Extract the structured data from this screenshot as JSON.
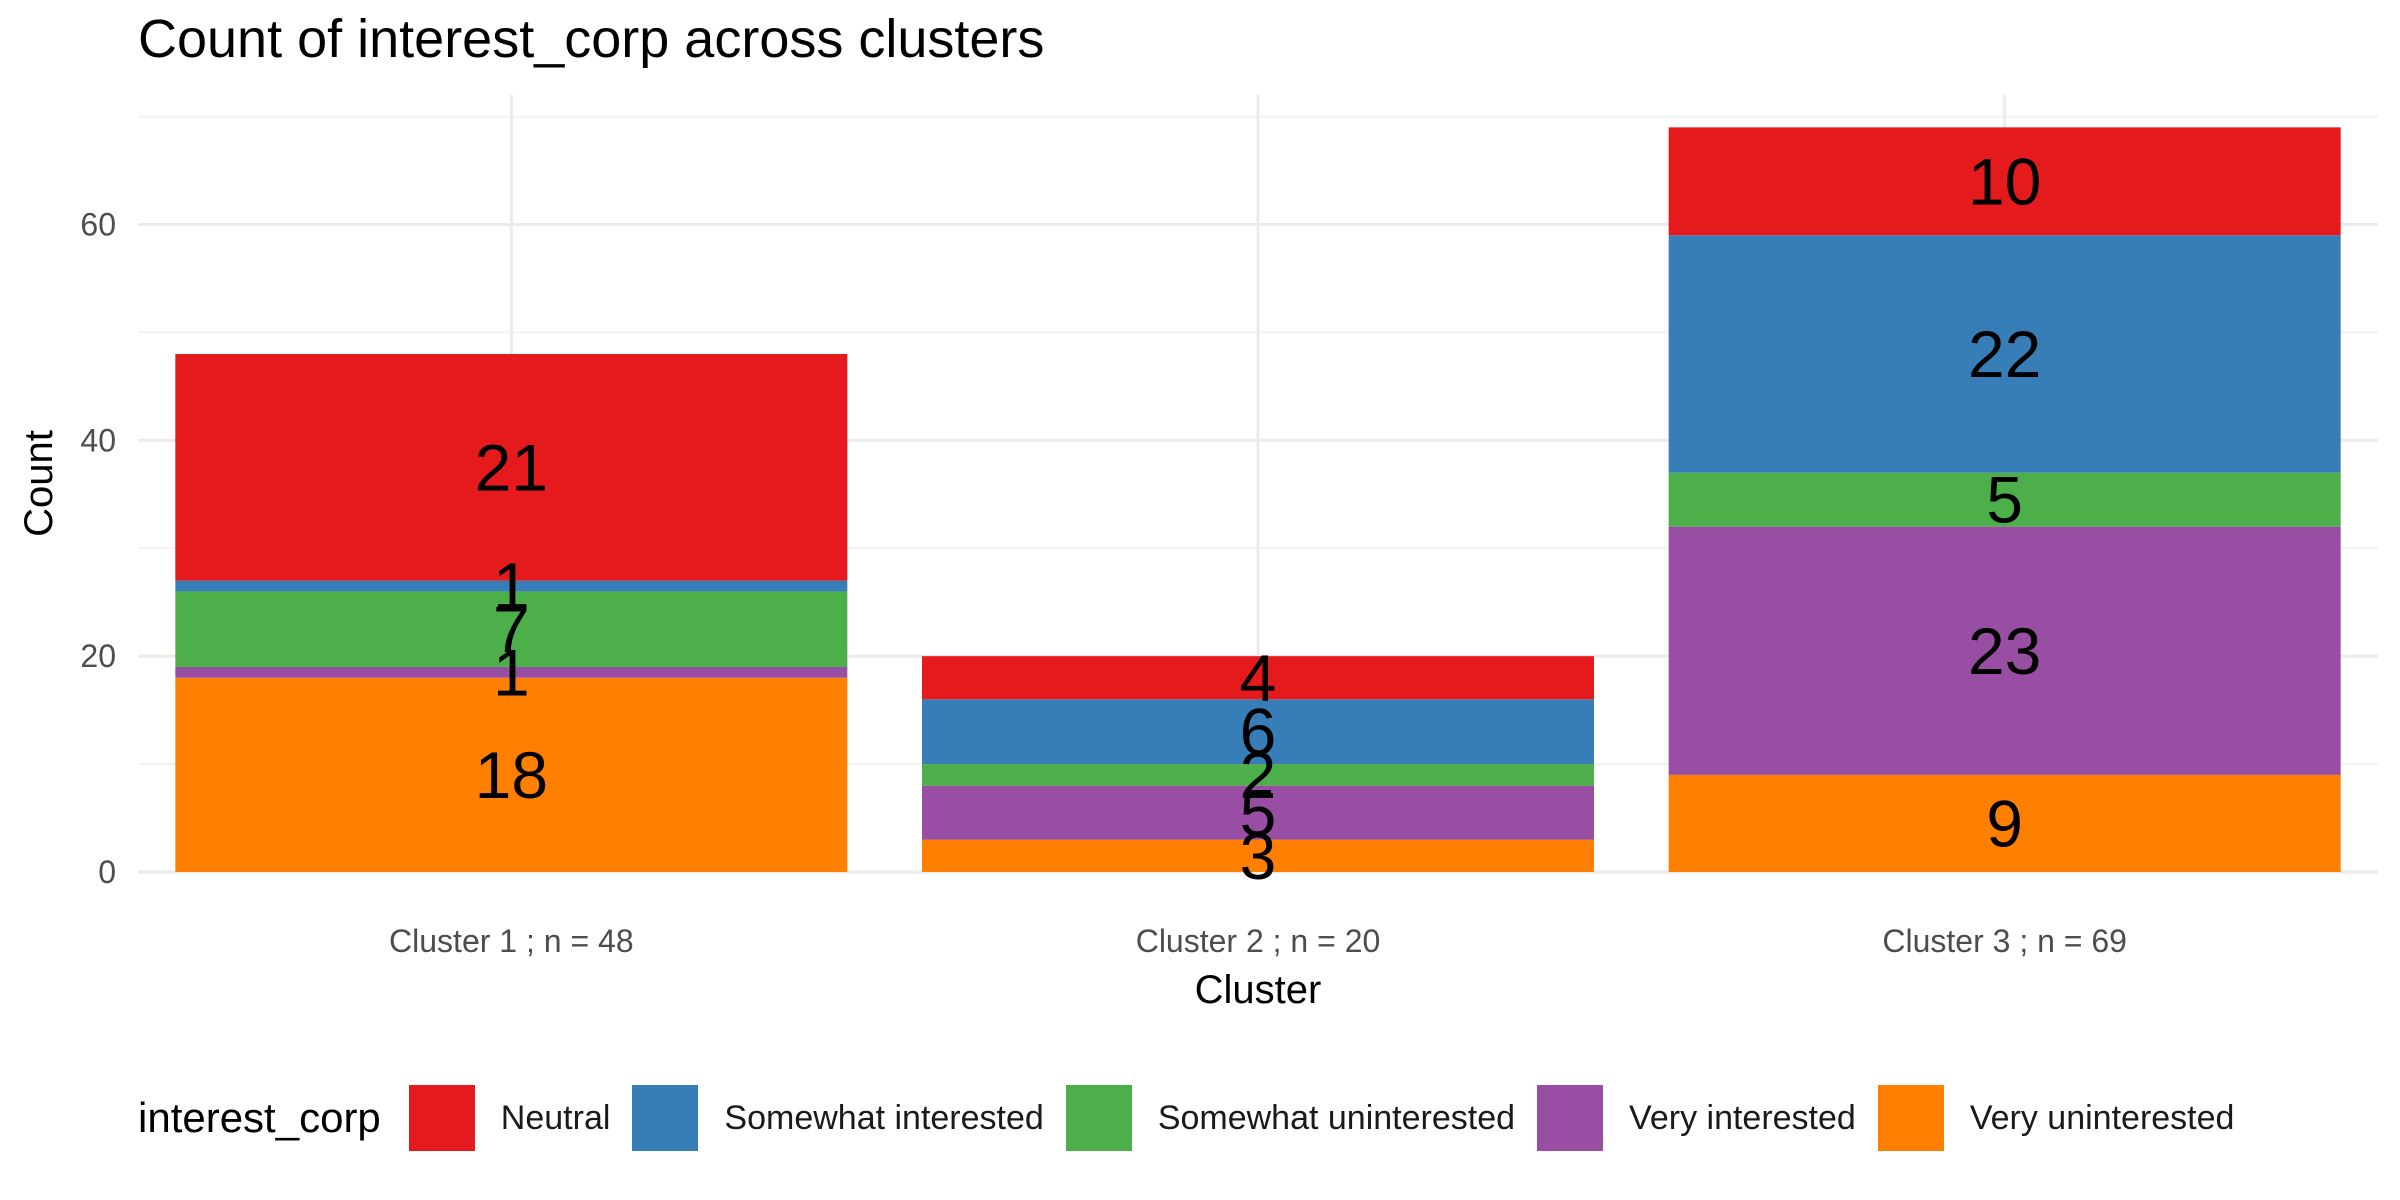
{
  "chart_data": {
    "type": "bar",
    "stacked": true,
    "title": "Count of interest_corp across clusters",
    "xlabel": "Cluster",
    "ylabel": "Count",
    "ylim": [
      0,
      72
    ],
    "yticks": [
      0,
      20,
      40,
      60
    ],
    "grid": true,
    "legend_position": "bottom",
    "legend_title": "interest_corp",
    "categories": [
      "Cluster 1 ; n = 48",
      "Cluster 2 ; n = 20",
      "Cluster 3 ; n = 69"
    ],
    "series": [
      {
        "name": "Very uninterested",
        "color": "#FF7F00",
        "values": [
          18,
          3,
          9
        ]
      },
      {
        "name": "Very interested",
        "color": "#984EA3",
        "values": [
          1,
          5,
          23
        ]
      },
      {
        "name": "Somewhat uninterested",
        "color": "#4DAF4A",
        "values": [
          7,
          2,
          5
        ]
      },
      {
        "name": "Somewhat interested",
        "color": "#377EB8",
        "values": [
          1,
          6,
          22
        ]
      },
      {
        "name": "Neutral",
        "color": "#E41A1C",
        "values": [
          21,
          4,
          10
        ]
      }
    ],
    "legend_order": [
      "Neutral",
      "Somewhat interested",
      "Somewhat uninterested",
      "Very interested",
      "Very uninterested"
    ]
  }
}
